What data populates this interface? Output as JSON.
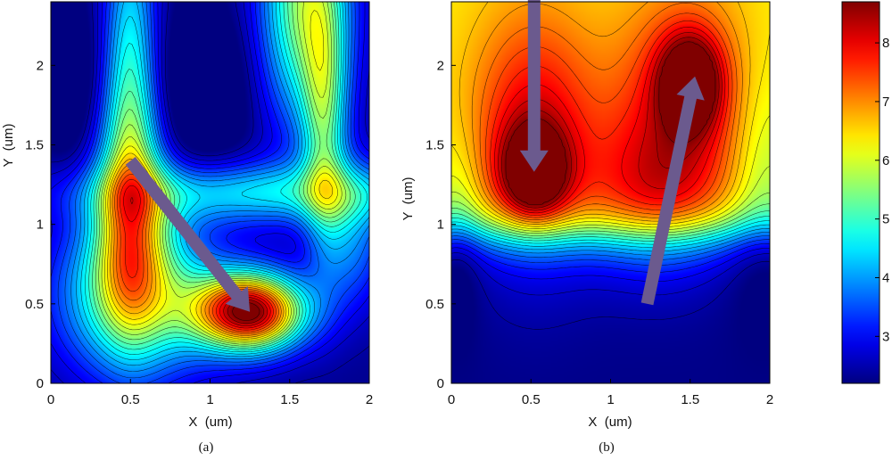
{
  "chart_data": [
    {
      "type": "heatmap",
      "caption": "(a)",
      "xlabel": "X  (um)",
      "ylabel": "Y  (um)",
      "xlim": [
        0,
        2
      ],
      "ylim": [
        0,
        2.4
      ],
      "xticks": [
        "0",
        "0.5",
        "1",
        "1.5",
        "2"
      ],
      "yticks": [
        "0",
        "0.5",
        "1",
        "1.5",
        "2"
      ],
      "zlim": [
        2.2,
        8.7
      ],
      "peaks": [
        {
          "x": 1.25,
          "y": 0.45,
          "value": 8.6
        },
        {
          "x": 1.6,
          "y": 2.4,
          "value": 5.6
        }
      ],
      "arrows": [
        {
          "from": [
            0.5,
            1.4
          ],
          "to": [
            1.25,
            0.45
          ]
        }
      ]
    },
    {
      "type": "heatmap",
      "caption": "(b)",
      "xlabel": "X  (um)",
      "ylabel": "Y  (um)",
      "xlim": [
        0,
        2
      ],
      "ylim": [
        0,
        2.4
      ],
      "xticks": [
        "0",
        "0.5",
        "1",
        "1.5",
        "2"
      ],
      "yticks": [
        "0",
        "0.5",
        "1",
        "1.5",
        "2"
      ],
      "zlim": [
        2.2,
        8.7
      ],
      "peaks": [
        {
          "x": 0.52,
          "y": 1.3,
          "value": 8.6
        },
        {
          "x": 1.5,
          "y": 1.9,
          "value": 8.6
        }
      ],
      "arrows": [
        {
          "from": [
            0.52,
            2.45
          ],
          "to": [
            0.52,
            1.33
          ]
        },
        {
          "from": [
            1.23,
            0.5
          ],
          "to": [
            1.53,
            1.93
          ]
        }
      ]
    }
  ],
  "colorbar": {
    "zlim": [
      2.2,
      8.7
    ],
    "ticks": [
      "3",
      "4",
      "5",
      "6",
      "7",
      "8"
    ]
  },
  "colors": {
    "arrow": "#6b5a8e",
    "contour_line": "#000000"
  }
}
